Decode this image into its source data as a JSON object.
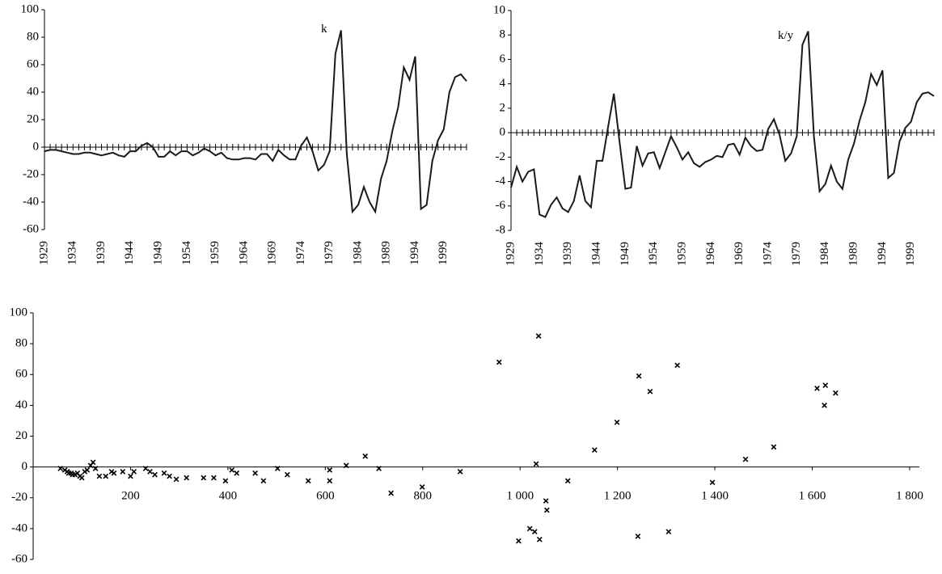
{
  "chart_data": [
    {
      "type": "line",
      "annotation": "k",
      "x": [
        1929,
        1930,
        1931,
        1932,
        1933,
        1934,
        1935,
        1936,
        1937,
        1938,
        1939,
        1940,
        1941,
        1942,
        1943,
        1944,
        1945,
        1946,
        1947,
        1948,
        1949,
        1950,
        1951,
        1952,
        1953,
        1954,
        1955,
        1956,
        1957,
        1958,
        1959,
        1960,
        1961,
        1962,
        1963,
        1964,
        1965,
        1966,
        1967,
        1968,
        1969,
        1970,
        1971,
        1972,
        1973,
        1974,
        1975,
        1976,
        1977,
        1978,
        1979,
        1980,
        1981,
        1982,
        1983,
        1984,
        1985,
        1986,
        1987,
        1988,
        1989,
        1990,
        1991,
        1992,
        1993,
        1994,
        1995,
        1996,
        1997,
        1998,
        1999,
        2000,
        2001,
        2002,
        2003
      ],
      "values": [
        -3,
        -2,
        -2,
        -3,
        -4,
        -5,
        -5,
        -4,
        -4,
        -5,
        -6,
        -5,
        -4,
        -6,
        -7,
        -3,
        -3,
        1,
        3,
        0,
        -7,
        -7,
        -3,
        -6,
        -3,
        -3,
        -6,
        -4,
        -1,
        -3,
        -6,
        -4,
        -8,
        -9,
        -9,
        -8,
        -8,
        -9,
        -5,
        -5,
        -10,
        -2,
        -6,
        -9,
        -9,
        1,
        7,
        -3,
        -17,
        -13,
        -3,
        68,
        85,
        -5,
        -47,
        -42,
        -29,
        -40,
        -47,
        -23,
        -10,
        12,
        29,
        58,
        49,
        66,
        -45,
        -42,
        -10,
        5,
        13,
        40,
        51,
        53,
        48
      ],
      "color": "#1a1a1a",
      "xlim": [
        1929,
        2003
      ],
      "xticks": [
        1929,
        1934,
        1939,
        1944,
        1949,
        1954,
        1959,
        1964,
        1969,
        1974,
        1979,
        1984,
        1989,
        1994,
        1999
      ],
      "ylim": [
        -60,
        100
      ],
      "yticks": [
        -60,
        -40,
        -20,
        0,
        20,
        40,
        60,
        80,
        100
      ]
    },
    {
      "type": "line",
      "annotation": "k/y",
      "x": [
        1929,
        1930,
        1931,
        1932,
        1933,
        1934,
        1935,
        1936,
        1937,
        1938,
        1939,
        1940,
        1941,
        1942,
        1943,
        1944,
        1945,
        1946,
        1947,
        1948,
        1949,
        1950,
        1951,
        1952,
        1953,
        1954,
        1955,
        1956,
        1957,
        1958,
        1959,
        1960,
        1961,
        1962,
        1963,
        1964,
        1965,
        1966,
        1967,
        1968,
        1969,
        1970,
        1971,
        1972,
        1973,
        1974,
        1975,
        1976,
        1977,
        1978,
        1979,
        1980,
        1981,
        1982,
        1983,
        1984,
        1985,
        1986,
        1987,
        1988,
        1989,
        1990,
        1991,
        1992,
        1993,
        1994,
        1995,
        1996,
        1997,
        1998,
        1999,
        2000,
        2001,
        2002,
        2003
      ],
      "values": [
        -4.5,
        -2.8,
        -4.0,
        -3.2,
        -3.0,
        -6.7,
        -6.9,
        -5.9,
        -5.3,
        -6.2,
        -6.5,
        -5.6,
        -3.5,
        -5.6,
        -6.1,
        -2.3,
        -2.3,
        0.5,
        3.2,
        -0.8,
        -4.6,
        -4.5,
        -1.1,
        -2.7,
        -1.7,
        -1.6,
        -2.9,
        -1.6,
        -0.3,
        -1.2,
        -2.2,
        -1.6,
        -2.5,
        -2.8,
        -2.4,
        -2.2,
        -1.9,
        -2.0,
        -1.0,
        -0.9,
        -1.8,
        -0.4,
        -1.1,
        -1.5,
        -1.4,
        0.3,
        1.1,
        -0.2,
        -2.3,
        -1.7,
        -0.3,
        7.2,
        8.3,
        -0.3,
        -4.8,
        -4.2,
        -2.7,
        -4.0,
        -4.6,
        -2.2,
        -0.9,
        1.0,
        2.5,
        4.8,
        3.9,
        5.1,
        -3.7,
        -3.3,
        -0.7,
        0.4,
        0.9,
        2.5,
        3.2,
        3.3,
        3.0
      ],
      "color": "#1a1a1a",
      "xlim": [
        1929,
        2003
      ],
      "xticks": [
        1929,
        1934,
        1939,
        1944,
        1949,
        1954,
        1959,
        1964,
        1969,
        1974,
        1979,
        1984,
        1989,
        1994,
        1999
      ],
      "ylim": [
        -8,
        10
      ],
      "yticks": [
        -8,
        -6,
        -4,
        -2,
        0,
        2,
        4,
        6,
        8,
        10
      ]
    },
    {
      "type": "scatter",
      "x": [
        56,
        65,
        70,
        73,
        78,
        81,
        86,
        91,
        96,
        100,
        106,
        111,
        118,
        123,
        128,
        136,
        149,
        161,
        166,
        184,
        200,
        207,
        231,
        240,
        250,
        269,
        280,
        294,
        315,
        350,
        371,
        395,
        408,
        418,
        456,
        473,
        502,
        522,
        565,
        609,
        609,
        643,
        682,
        710,
        735,
        799,
        877,
        957,
        997,
        1020,
        1030,
        1033,
        1038,
        1040,
        1053,
        1055,
        1098,
        1153,
        1199,
        1244,
        1242,
        1267,
        1305,
        1323,
        1395,
        1463,
        1521,
        1610,
        1625,
        1627,
        1648
      ],
      "values": [
        -1,
        -2,
        -3,
        -4,
        -4,
        -5,
        -5,
        -4,
        -6,
        -7,
        -3,
        -2,
        1,
        3,
        -1,
        -6,
        -6,
        -3,
        -4,
        -3,
        -6,
        -3,
        -1,
        -3,
        -5,
        -4,
        -6,
        -8,
        -7,
        -7,
        -7,
        -9,
        -2,
        -4,
        -4,
        -9,
        -1,
        -5,
        -9,
        -9,
        -2,
        1,
        7,
        -1,
        -17,
        -13,
        -3,
        68,
        -48,
        -40,
        -42,
        2,
        85,
        -47,
        -22,
        -28,
        -9,
        11,
        29,
        59,
        -45,
        49,
        -42,
        66,
        -10,
        5,
        13,
        51,
        40,
        53,
        48
      ],
      "color": "#000000",
      "xlim": [
        0,
        1820
      ],
      "xticks": [
        200,
        400,
        600,
        800,
        {
          "value": 1000,
          "label": "1 000"
        },
        {
          "value": 1200,
          "label": "1 200"
        },
        {
          "value": 1400,
          "label": "1 400"
        },
        {
          "value": 1600,
          "label": "1 600"
        },
        {
          "value": 1800,
          "label": "1 800"
        }
      ],
      "ylim": [
        -60,
        100
      ],
      "yticks": [
        -60,
        -40,
        -20,
        0,
        20,
        40,
        60,
        80,
        100
      ]
    }
  ]
}
